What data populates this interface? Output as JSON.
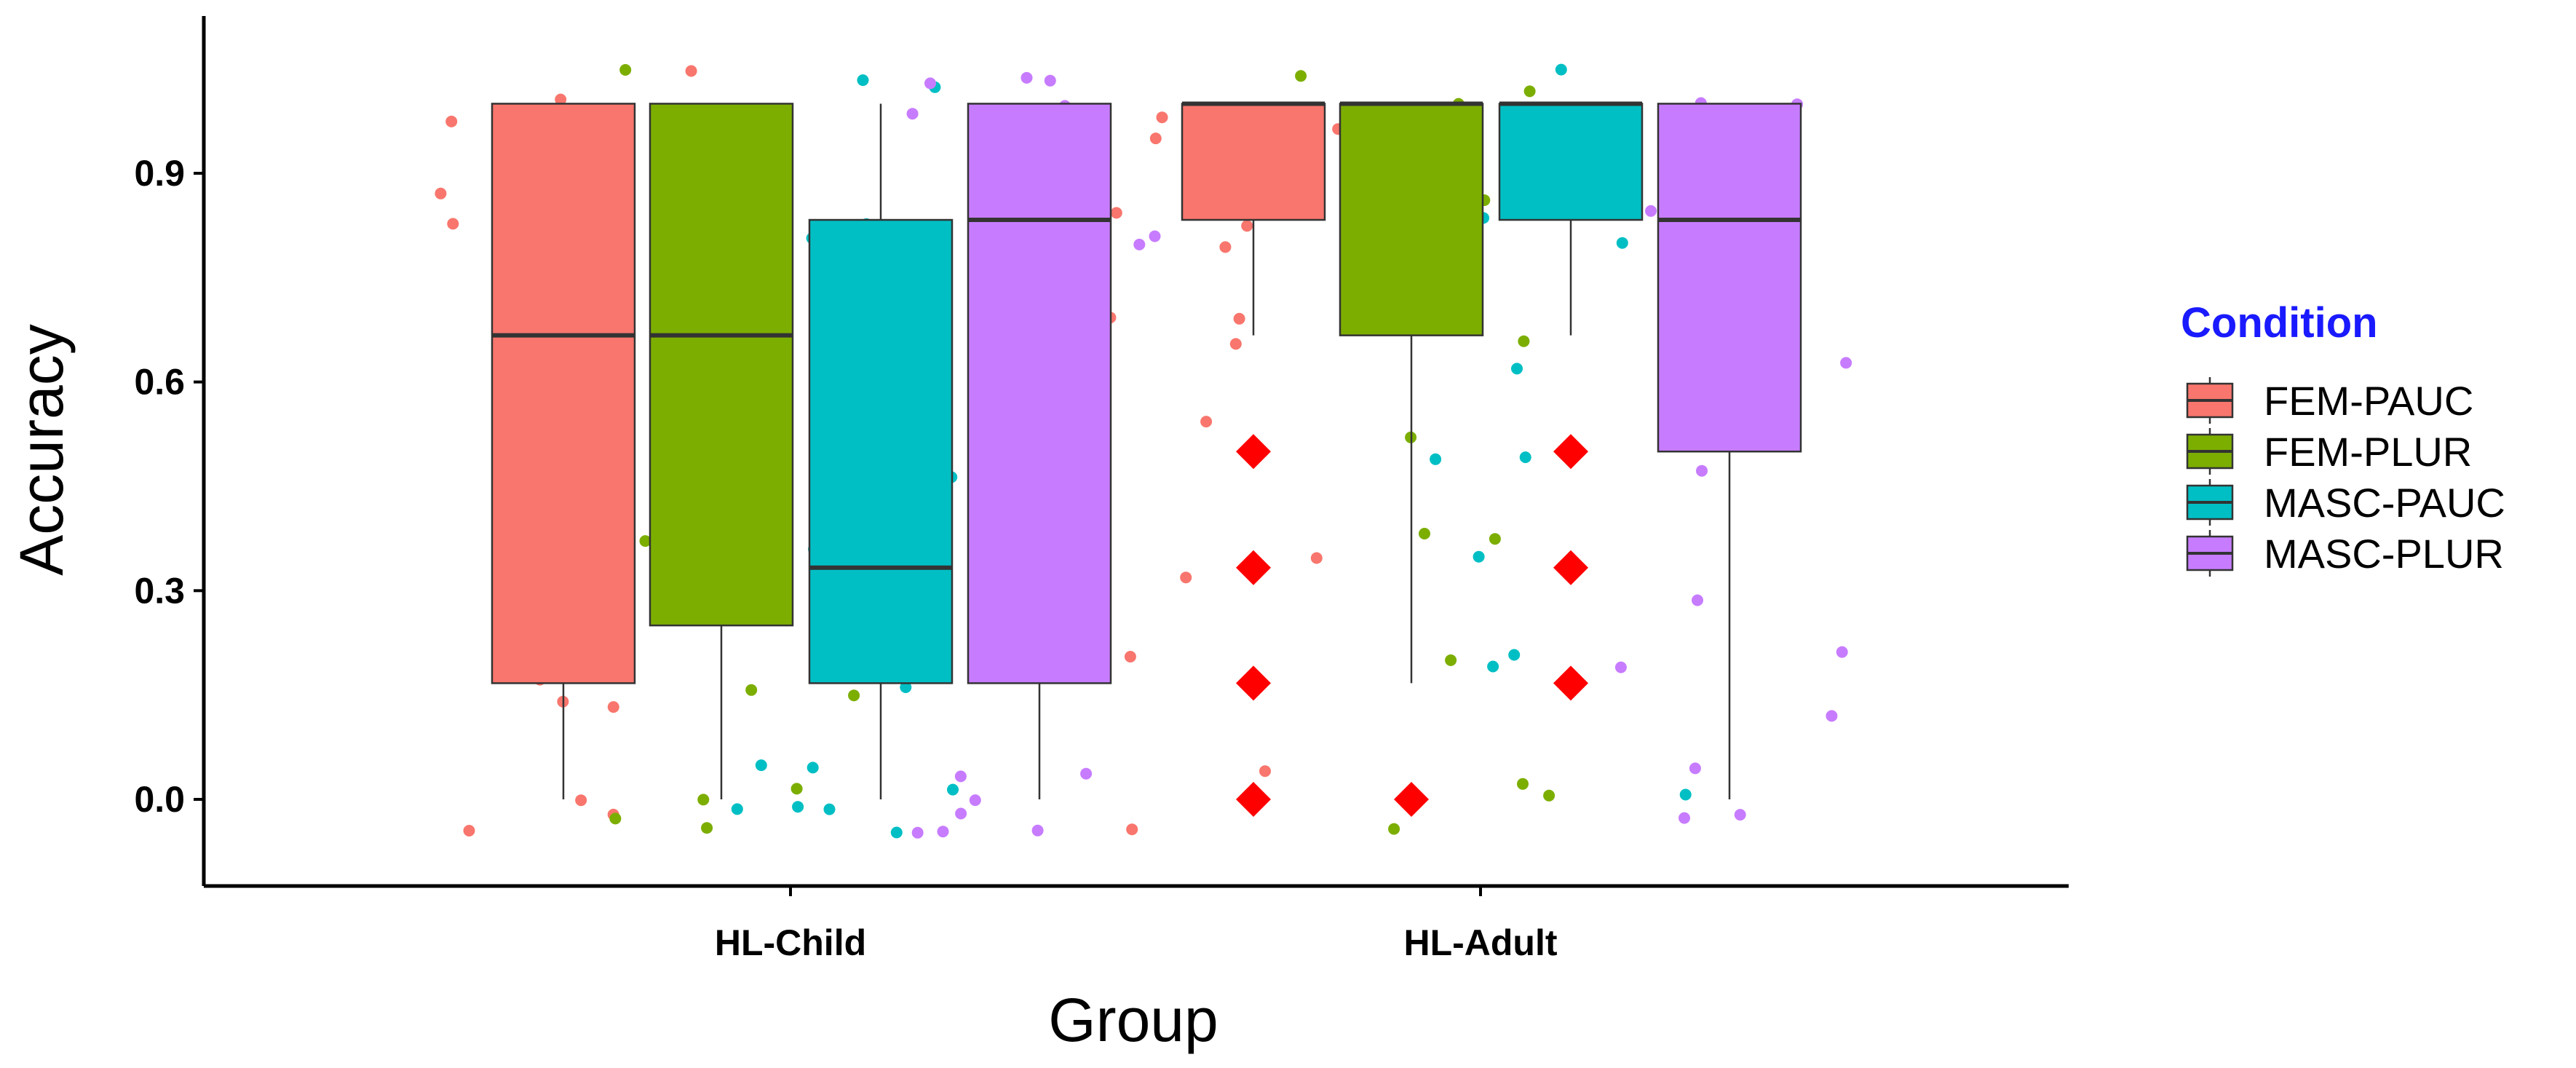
{
  "chart_data": {
    "type": "box",
    "xlabel": "Group",
    "ylabel": "Accuracy",
    "ylim": [
      -0.13,
      1.13
    ],
    "yticks": [
      0.0,
      0.3,
      0.6,
      0.9
    ],
    "ytick_labels": [
      "0.0",
      "0.3",
      "0.6",
      "0.9"
    ],
    "categories": [
      "HL-Child",
      "HL-Adult"
    ],
    "legend": {
      "title": "Condition",
      "title_color": "#1a1aff",
      "placement": "right",
      "entries": [
        "FEM-PAUC",
        "FEM-PLUR",
        "MASC-PAUC",
        "MASC-PLUR"
      ]
    },
    "colors": {
      "FEM-PAUC": "#f8766d",
      "FEM-PLUR": "#7cae00",
      "MASC-PAUC": "#00bfc4",
      "MASC-PLUR": "#c77cff",
      "outlier": "#ff0000"
    },
    "boxes": [
      {
        "group": "HL-Child",
        "condition": "FEM-PAUC",
        "min": 0.0,
        "q1": 0.167,
        "median": 0.667,
        "q3": 1.0,
        "max": 1.0
      },
      {
        "group": "HL-Child",
        "condition": "FEM-PLUR",
        "min": 0.0,
        "q1": 0.25,
        "median": 0.667,
        "q3": 1.0,
        "max": 1.0
      },
      {
        "group": "HL-Child",
        "condition": "MASC-PAUC",
        "min": 0.0,
        "q1": 0.167,
        "median": 0.333,
        "q3": 0.833,
        "max": 1.0
      },
      {
        "group": "HL-Child",
        "condition": "MASC-PLUR",
        "min": 0.0,
        "q1": 0.167,
        "median": 0.833,
        "q3": 1.0,
        "max": 1.0
      },
      {
        "group": "HL-Adult",
        "condition": "FEM-PAUC",
        "min": 0.667,
        "q1": 0.833,
        "median": 1.0,
        "q3": 1.0,
        "max": 1.0
      },
      {
        "group": "HL-Adult",
        "condition": "FEM-PLUR",
        "min": 0.167,
        "q1": 0.667,
        "median": 1.0,
        "q3": 1.0,
        "max": 1.0
      },
      {
        "group": "HL-Adult",
        "condition": "MASC-PAUC",
        "min": 0.667,
        "q1": 0.833,
        "median": 1.0,
        "q3": 1.0,
        "max": 1.0
      },
      {
        "group": "HL-Adult",
        "condition": "MASC-PLUR",
        "min": 0.0,
        "q1": 0.5,
        "median": 0.833,
        "q3": 1.0,
        "max": 1.0
      }
    ],
    "outliers": [
      {
        "group": "HL-Adult",
        "condition": "FEM-PAUC",
        "values": [
          0.5,
          0.333,
          0.167,
          0.0
        ]
      },
      {
        "group": "HL-Adult",
        "condition": "FEM-PLUR",
        "values": [
          0.0
        ]
      },
      {
        "group": "HL-Adult",
        "condition": "MASC-PAUC",
        "values": [
          0.5,
          0.333,
          0.167
        ]
      }
    ],
    "jitter_points": [
      {
        "group": "HL-Child",
        "condition": "FEM-PAUC",
        "values": [
          1.0,
          1.0,
          0.833,
          0.833,
          0.667,
          0.667,
          0.333,
          0.167,
          0.167,
          0.0,
          0.0,
          1.0,
          0.833,
          0.5,
          0.167,
          0.0
        ]
      },
      {
        "group": "HL-Child",
        "condition": "FEM-PLUR",
        "values": [
          1.0,
          1.0,
          1.0,
          0.833,
          0.667,
          0.667,
          0.333,
          0.333,
          0.167,
          0.0,
          0.0,
          0.0,
          1.0,
          0.833,
          0.167,
          0.0
        ]
      },
      {
        "group": "HL-Child",
        "condition": "MASC-PAUC",
        "values": [
          1.0,
          0.833,
          0.833,
          0.5,
          0.333,
          0.167,
          0.167,
          0.0,
          0.0,
          0.0,
          0.0,
          1.0,
          0.0,
          0.0,
          0.167,
          0.0
        ]
      },
      {
        "group": "HL-Child",
        "condition": "MASC-PLUR",
        "values": [
          1.0,
          1.0,
          1.0,
          0.833,
          0.833,
          0.833,
          0.0,
          0.0,
          0.0,
          0.0,
          1.0,
          0.833,
          0.0,
          0.0,
          1.0,
          0.0
        ]
      },
      {
        "group": "HL-Adult",
        "condition": "FEM-PAUC",
        "values": [
          1.0,
          1.0,
          1.0,
          0.833,
          0.833,
          0.667,
          0.667,
          0.5,
          0.333,
          0.333,
          0.167,
          0.0,
          1.0,
          0.833,
          0.667,
          0.0
        ]
      },
      {
        "group": "HL-Adult",
        "condition": "FEM-PLUR",
        "values": [
          1.0,
          1.0,
          1.0,
          1.0,
          0.833,
          0.667,
          0.5,
          0.333,
          0.333,
          0.167,
          0.0,
          0.0,
          1.0,
          0.833,
          0.0,
          0.0
        ]
      },
      {
        "group": "HL-Adult",
        "condition": "MASC-PAUC",
        "values": [
          1.0,
          1.0,
          1.0,
          0.833,
          0.833,
          0.667,
          0.667,
          0.5,
          0.333,
          0.167,
          0.167,
          1.0,
          0.833,
          0.5,
          0.0,
          1.0
        ]
      },
      {
        "group": "HL-Adult",
        "condition": "MASC-PLUR",
        "values": [
          1.0,
          1.0,
          1.0,
          0.833,
          0.833,
          0.667,
          0.5,
          0.333,
          0.167,
          0.167,
          0.0,
          0.0,
          1.0,
          0.833,
          0.167,
          0.0
        ]
      }
    ]
  }
}
